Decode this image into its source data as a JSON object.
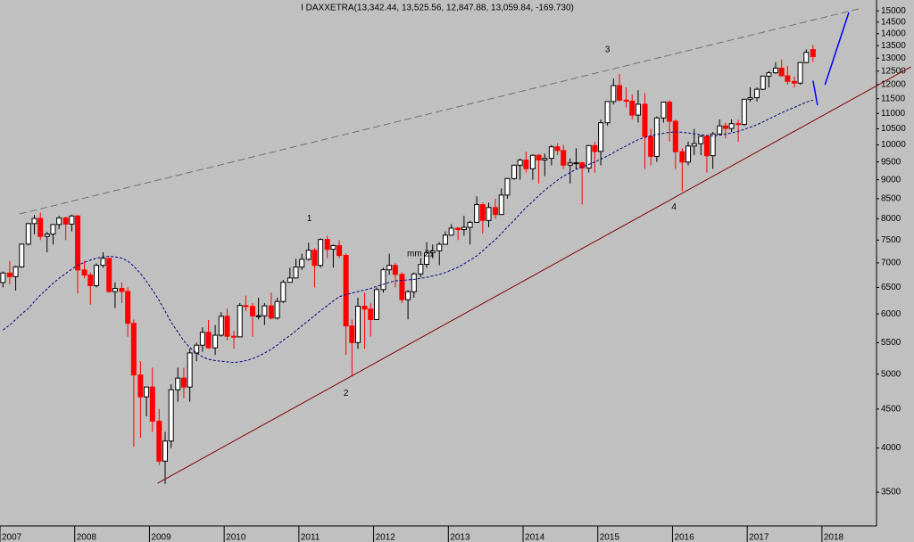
{
  "chart_data": {
    "type": "candlestick",
    "title": "I DAXXETRA(13,342.44, 13,525.56, 12,847.88, 13,059.84, -169.730)",
    "log": true,
    "up_color": "#ffffff",
    "down_color": "#ff0000",
    "outline_color": "#000000",
    "xlim": [
      2007,
      2018.73
    ],
    "xticks": [
      2007,
      2008,
      2009,
      2010,
      2011,
      2012,
      2013,
      2014,
      2015,
      2016,
      2017,
      2018
    ],
    "ylim": [
      3160,
      15500
    ],
    "yticks": [
      3500,
      4000,
      4500,
      5000,
      5500,
      6000,
      6500,
      7000,
      7500,
      8000,
      8500,
      9000,
      9500,
      10000,
      10500,
      11000,
      11500,
      12000,
      12500,
      13000,
      13500,
      14000,
      14500,
      15000
    ],
    "x": [
      2007.04,
      2007.13,
      2007.21,
      2007.29,
      2007.38,
      2007.46,
      2007.54,
      2007.63,
      2007.71,
      2007.79,
      2007.88,
      2007.96,
      2008.04,
      2008.13,
      2008.21,
      2008.29,
      2008.38,
      2008.46,
      2008.54,
      2008.63,
      2008.71,
      2008.79,
      2008.88,
      2008.96,
      2009.04,
      2009.13,
      2009.21,
      2009.29,
      2009.38,
      2009.46,
      2009.54,
      2009.63,
      2009.71,
      2009.79,
      2009.88,
      2009.96,
      2010.04,
      2010.13,
      2010.21,
      2010.29,
      2010.38,
      2010.46,
      2010.54,
      2010.63,
      2010.71,
      2010.79,
      2010.88,
      2010.96,
      2011.04,
      2011.13,
      2011.21,
      2011.29,
      2011.38,
      2011.46,
      2011.54,
      2011.63,
      2011.71,
      2011.79,
      2011.88,
      2011.96,
      2012.04,
      2012.13,
      2012.21,
      2012.29,
      2012.38,
      2012.46,
      2012.54,
      2012.63,
      2012.71,
      2012.79,
      2012.88,
      2012.96,
      2013.04,
      2013.13,
      2013.21,
      2013.29,
      2013.38,
      2013.46,
      2013.54,
      2013.63,
      2013.71,
      2013.79,
      2013.88,
      2013.96,
      2014.04,
      2014.13,
      2014.21,
      2014.29,
      2014.38,
      2014.46,
      2014.54,
      2014.63,
      2014.71,
      2014.79,
      2014.88,
      2014.96,
      2015.04,
      2015.13,
      2015.21,
      2015.29,
      2015.38,
      2015.46,
      2015.54,
      2015.63,
      2015.71,
      2015.79,
      2015.88,
      2015.96,
      2016.04,
      2016.13,
      2016.21,
      2016.29,
      2016.38,
      2016.46,
      2016.54,
      2016.63,
      2016.71,
      2016.79,
      2016.88,
      2016.96,
      2017.04,
      2017.13,
      2017.21,
      2017.29,
      2017.38,
      2017.46,
      2017.54,
      2017.63,
      2017.71,
      2017.79,
      2017.88
    ],
    "open": [
      6597,
      6789,
      6716,
      6917,
      7409,
      7883,
      8007,
      7584,
      7638,
      7862,
      8020,
      7871,
      8067,
      6852,
      6748,
      6535,
      6949,
      7097,
      6419,
      6480,
      6422,
      5831,
      4988,
      4669,
      4810,
      4338,
      3844,
      4085,
      4770,
      4941,
      4809,
      5332,
      5458,
      5675,
      5415,
      5625,
      5957,
      5608,
      5598,
      6154,
      6136,
      5965,
      5966,
      6148,
      5925,
      6229,
      6601,
      6688,
      6914,
      7077,
      7273,
      6946,
      7514,
      7294,
      7376,
      7159,
      5785,
      5502,
      6141,
      6088,
      5898,
      6458,
      6856,
      6947,
      6761,
      6264,
      6416,
      6772,
      6970,
      7216,
      7260,
      7406,
      7612,
      7776,
      7742,
      7795,
      7914,
      8349,
      7959,
      8276,
      8103,
      8594,
      9034,
      9406,
      9552,
      9306,
      9692,
      9556,
      9603,
      9943,
      9833,
      9407,
      9470,
      9474,
      9327,
      9980,
      9806,
      10694,
      11402,
      11966,
      11454,
      11414,
      10945,
      11309,
      10259,
      9660,
      10850,
      11382,
      10743,
      9798,
      9495,
      9966,
      10039,
      10263,
      9680,
      10337,
      10593,
      10511,
      10665,
      10640,
      11481,
      11535,
      11834,
      12313,
      12438,
      12615,
      12325,
      12118,
      12056,
      12829,
      13342.44
    ],
    "high": [
      6820,
      7040,
      6940,
      7410,
      7900,
      8090,
      8151,
      7690,
      7870,
      8070,
      8050,
      8100,
      8100,
      7050,
      6800,
      6990,
      7232,
      7100,
      6600,
      6600,
      6500,
      5900,
      5200,
      4800,
      5100,
      4500,
      4200,
      4850,
      5100,
      5100,
      5400,
      5500,
      5760,
      5890,
      5800,
      6030,
      6100,
      5700,
      6200,
      6340,
      6200,
      6300,
      6200,
      6400,
      6300,
      6650,
      6900,
      7090,
      7200,
      7440,
      7320,
      7540,
      7600,
      7400,
      7500,
      7200,
      5900,
      6300,
      6400,
      6200,
      6500,
      6900,
      7200,
      7000,
      6800,
      6450,
      6800,
      7100,
      7450,
      7400,
      7450,
      7700,
      7870,
      7800,
      8070,
      7950,
      8560,
      8400,
      8400,
      8500,
      8770,
      9050,
      9420,
      9600,
      9800,
      9720,
      9730,
      9740,
      10000,
      10050,
      10000,
      9600,
      9900,
      9500,
      10000,
      10100,
      10800,
      11400,
      12220,
      12390,
      11900,
      11650,
      11800,
      11700,
      10500,
      10900,
      11400,
      11450,
      10800,
      9900,
      10100,
      10500,
      10300,
      10300,
      10400,
      10800,
      10700,
      10800,
      10800,
      11500,
      11900,
      11900,
      12320,
      12500,
      12850,
      12950,
      12700,
      12300,
      12850,
      13350,
      13525.56
    ],
    "low": [
      6500,
      6560,
      6439,
      6900,
      7380,
      7630,
      7500,
      7230,
      7400,
      7750,
      7500,
      7700,
      6384,
      6680,
      6168,
      6500,
      6900,
      6400,
      6107,
      6200,
      5600,
      4014,
      4127,
      4400,
      4200,
      3800,
      3589,
      4000,
      4600,
      4650,
      4600,
      5200,
      5350,
      5400,
      5300,
      5600,
      5540,
      5400,
      5590,
      6050,
      5600,
      5900,
      5800,
      5900,
      5900,
      6200,
      6600,
      6680,
      6850,
      7050,
      6500,
      6900,
      7100,
      6900,
      7100,
      5300,
      4965,
      5400,
      5400,
      5600,
      5900,
      6400,
      6750,
      6500,
      6200,
      5900,
      6300,
      6700,
      6900,
      7100,
      6950,
      7400,
      7600,
      7500,
      7600,
      7400,
      7900,
      7650,
      7800,
      8000,
      8100,
      8500,
      9000,
      9000,
      9200,
      9000,
      8900,
      9100,
      9400,
      9700,
      9300,
      8900,
      9300,
      8355,
      9200,
      9200,
      9400,
      10600,
      11300,
      11400,
      11200,
      10800,
      10700,
      9300,
      9400,
      9500,
      10700,
      10100,
      9300,
      8699,
      9400,
      9700,
      9700,
      9200,
      9300,
      10300,
      10200,
      10400,
      10100,
      10600,
      11400,
      11400,
      11800,
      11900,
      12400,
      12300,
      12000,
      11900,
      12000,
      12800,
      12847.88
    ],
    "close": [
      6789,
      6716,
      6917,
      7409,
      7883,
      8007,
      7584,
      7638,
      7862,
      8020,
      7871,
      8067,
      6852,
      6748,
      6535,
      6949,
      7097,
      6419,
      6480,
      6422,
      5831,
      4988,
      4669,
      4810,
      4338,
      3844,
      4085,
      4770,
      4941,
      4809,
      5332,
      5458,
      5675,
      5415,
      5625,
      5957,
      5608,
      5598,
      6154,
      6136,
      5965,
      5966,
      6148,
      5925,
      6229,
      6601,
      6688,
      6914,
      7077,
      7273,
      6946,
      7514,
      7294,
      7376,
      7159,
      5785,
      5502,
      6141,
      6088,
      5898,
      6458,
      6856,
      6947,
      6761,
      6264,
      6416,
      6772,
      6970,
      7216,
      7260,
      7406,
      7612,
      7776,
      7742,
      7795,
      7914,
      8349,
      7959,
      8276,
      8103,
      8594,
      9034,
      9406,
      9552,
      9306,
      9692,
      9556,
      9603,
      9943,
      9833,
      9407,
      9470,
      9474,
      9327,
      9980,
      9806,
      10694,
      11402,
      11966,
      11454,
      11414,
      10945,
      11309,
      10259,
      9660,
      10850,
      11382,
      10743,
      9798,
      9495,
      9966,
      10039,
      10263,
      9680,
      10337,
      10593,
      10511,
      10665,
      10640,
      11481,
      11535,
      11834,
      12313,
      12438,
      12615,
      12325,
      12118,
      12056,
      12829,
      13230,
      13059.84
    ],
    "moving_average": {
      "color": "#000080",
      "dashed": true,
      "values": [
        5714,
        5800,
        5900,
        6000,
        6100,
        6230,
        6350,
        6470,
        6580,
        6680,
        6780,
        6870,
        6950,
        7010,
        7060,
        7100,
        7130,
        7140,
        7130,
        7100,
        7040,
        6930,
        6780,
        6620,
        6450,
        6250,
        6050,
        5850,
        5680,
        5530,
        5420,
        5330,
        5270,
        5230,
        5210,
        5200,
        5190,
        5180,
        5190,
        5210,
        5240,
        5280,
        5330,
        5390,
        5460,
        5540,
        5620,
        5700,
        5790,
        5880,
        5970,
        6060,
        6150,
        6240,
        6320,
        6360,
        6390,
        6420,
        6450,
        6480,
        6520,
        6560,
        6600,
        6630,
        6640,
        6650,
        6660,
        6680,
        6700,
        6730,
        6760,
        6800,
        6850,
        6910,
        6980,
        7060,
        7150,
        7260,
        7380,
        7510,
        7650,
        7800,
        7960,
        8120,
        8280,
        8430,
        8580,
        8720,
        8860,
        8990,
        9100,
        9200,
        9290,
        9360,
        9430,
        9500,
        9580,
        9670,
        9770,
        9870,
        9970,
        10070,
        10160,
        10230,
        10280,
        10320,
        10360,
        10390,
        10400,
        10390,
        10370,
        10340,
        10310,
        10290,
        10280,
        10300,
        10330,
        10370,
        10420,
        10480,
        10550,
        10630,
        10720,
        10820,
        10920,
        11020,
        11110,
        11200,
        11290,
        11380,
        11450
      ]
    },
    "lines": [
      {
        "color": "#707070",
        "dashed": true,
        "x": [
          2007.26,
          2018.49
        ],
        "y": [
          8116,
          15088
        ]
      },
      {
        "color": "#800000",
        "dashed": false,
        "x": [
          2009.11,
          2019.19
        ],
        "y": [
          3596,
          12663
        ]
      },
      {
        "color": "#0000ff",
        "dashed": false,
        "x": [
          2017.88,
          2017.94
        ],
        "y": [
          12146,
          11276
        ]
      },
      {
        "color": "#0000ff",
        "dashed": false,
        "x": [
          2018.04,
          2018.36
        ],
        "y": [
          11990,
          14930
        ]
      }
    ],
    "annotations": [
      {
        "text": "1",
        "x": 2011.14,
        "y": 8005,
        "color": "#0000cc"
      },
      {
        "text": "2",
        "x": 2011.63,
        "y": 4720,
        "color": "#0000cc"
      },
      {
        "text": "3",
        "x": 2015.13,
        "y": 13330,
        "color": "#0000cc"
      },
      {
        "text": "4",
        "x": 2016.02,
        "y": 8290,
        "color": "#0000cc"
      },
      {
        "text": "mm 21",
        "x": 2012.63,
        "y": 7190,
        "color": "#000080"
      }
    ]
  }
}
